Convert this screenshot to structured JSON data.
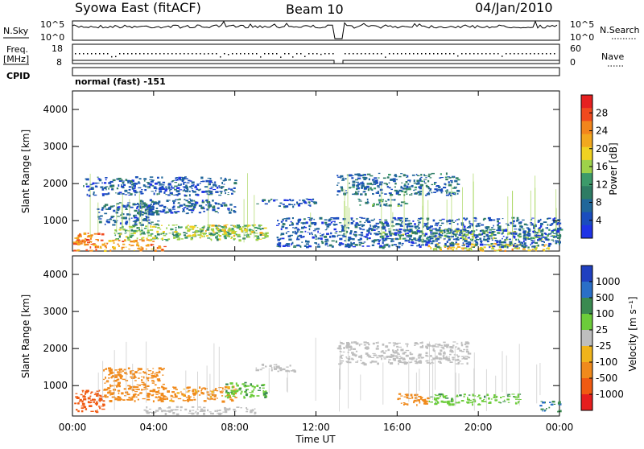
{
  "header": {
    "station": "Syowa East (fitACF)",
    "beam": "Beam 10",
    "date": "04/Jan/2010"
  },
  "aux": {
    "nsky_label": "N.Sky",
    "nsearch_label": "N.Search",
    "nsky_ticks": [
      "10^5",
      "10^0"
    ],
    "nsearch_ticks": [
      "10^5",
      "10^0"
    ],
    "freq_label_1": "Freq.",
    "freq_label_2": "[MHz]",
    "freq_ticks": [
      "18",
      "8"
    ],
    "nave_label": "Nave",
    "nave_ticks": [
      "60",
      "0"
    ],
    "cpid_label": "CPID",
    "cpid_text": "normal (fast) -151"
  },
  "axes": {
    "ylabel": "Slant Range [km]",
    "xlabel": "Time UT",
    "y_ticks": [
      "4000",
      "3000",
      "2000",
      "1000"
    ],
    "x_ticks": [
      "00:00",
      "04:00",
      "08:00",
      "12:00",
      "16:00",
      "20:00",
      "00:00"
    ]
  },
  "power_scale": {
    "label": "Power [dB]",
    "ticks": [
      "28",
      "24",
      "20",
      "16",
      "12",
      "8",
      "4"
    ],
    "colors": [
      "#e62020",
      "#f04a1e",
      "#f2851c",
      "#f2a81e",
      "#f0d222",
      "#9ed24a",
      "#3c9a6a",
      "#2e7c64",
      "#20669a",
      "#1a4dbe",
      "#1f33e6"
    ]
  },
  "velocity_scale": {
    "label": "Velocity [m s⁻¹]",
    "ticks": [
      "1000",
      "500",
      "100",
      "25",
      "-25",
      "-100",
      "-500",
      "-1000"
    ],
    "colors": [
      "#2040c0",
      "#2a6fc8",
      "#3a8a50",
      "#6ccc3a",
      "#bebebe",
      "#f0b41c",
      "#f08a1c",
      "#f05a12",
      "#e61e1e"
    ]
  },
  "chart_data": [
    {
      "type": "heatmap",
      "title": "Power",
      "xlabel": "Time UT",
      "ylabel": "Slant Range [km]",
      "xlim": [
        0,
        24
      ],
      "ylim": [
        180,
        4500
      ],
      "colorbar_label": "Power [dB]",
      "colorbar_range": [
        0,
        32
      ],
      "regions": [
        {
          "t": [
            0.0,
            4.5
          ],
          "r": [
            200,
            500
          ],
          "level": 24
        },
        {
          "t": [
            0.0,
            1.5
          ],
          "r": [
            300,
            700
          ],
          "level": 26
        },
        {
          "t": [
            1.2,
            4.2
          ],
          "r": [
            900,
            1500
          ],
          "level": 6
        },
        {
          "t": [
            2.0,
            9.5
          ],
          "r": [
            500,
            900
          ],
          "level": 14
        },
        {
          "t": [
            5.5,
            9.5
          ],
          "r": [
            600,
            900
          ],
          "level": 18
        },
        {
          "t": [
            3.0,
            8.0
          ],
          "r": [
            1200,
            1600
          ],
          "level": 6
        },
        {
          "t": [
            0.5,
            8.0
          ],
          "r": [
            1700,
            2200
          ],
          "level": 5
        },
        {
          "t": [
            9.0,
            12.0
          ],
          "r": [
            1400,
            1600
          ],
          "level": 5
        },
        {
          "t": [
            13.0,
            19.0
          ],
          "r": [
            1700,
            2300
          ],
          "level": 7
        },
        {
          "t": [
            14.0,
            16.5
          ],
          "r": [
            1400,
            1600
          ],
          "level": 10
        },
        {
          "t": [
            15.0,
            24.0
          ],
          "r": [
            500,
            800
          ],
          "level": 14
        },
        {
          "t": [
            17.5,
            23.5
          ],
          "r": [
            200,
            400
          ],
          "level": 20
        },
        {
          "t": [
            10.0,
            24.0
          ],
          "r": [
            300,
            1100
          ],
          "level": 5
        }
      ]
    },
    {
      "type": "heatmap",
      "title": "Velocity",
      "xlabel": "Time UT",
      "ylabel": "Slant Range [km]",
      "xlim": [
        0,
        24
      ],
      "ylim": [
        180,
        4500
      ],
      "colorbar_label": "Velocity [m s-1]",
      "colorbar_ticks": [
        1000,
        500,
        100,
        25,
        -25,
        -100,
        -500,
        -1000
      ],
      "regions": [
        {
          "t": [
            0.0,
            1.5
          ],
          "r": [
            300,
            900
          ],
          "v": -500
        },
        {
          "t": [
            1.5,
            4.5
          ],
          "r": [
            600,
            1500
          ],
          "v": -150
        },
        {
          "t": [
            4.0,
            8.0
          ],
          "r": [
            600,
            1000
          ],
          "v": -80
        },
        {
          "t": [
            7.5,
            9.5
          ],
          "r": [
            700,
            1100
          ],
          "v": 50
        },
        {
          "t": [
            3.5,
            9.0
          ],
          "r": [
            250,
            450
          ],
          "v": 0
        },
        {
          "t": [
            9.0,
            11.0
          ],
          "r": [
            1400,
            1600
          ],
          "v": 0
        },
        {
          "t": [
            13.0,
            19.5
          ],
          "r": [
            1600,
            2200
          ],
          "v": 0
        },
        {
          "t": [
            16.0,
            17.5
          ],
          "r": [
            500,
            800
          ],
          "v": -100
        },
        {
          "t": [
            17.5,
            22.0
          ],
          "r": [
            500,
            800
          ],
          "v": 50
        },
        {
          "t": [
            23.0,
            24.0
          ],
          "r": [
            300,
            600
          ],
          "v": 300
        }
      ]
    }
  ]
}
